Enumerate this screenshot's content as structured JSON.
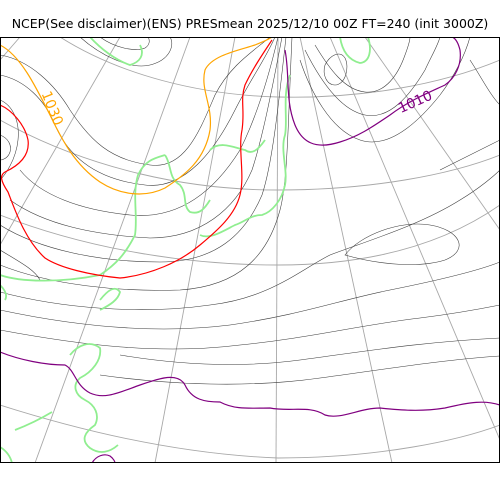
{
  "title": "NCEP(See disclaimer)(ENS) PRESmean 2025/12/10 00Z FT=240 (init 3000Z)",
  "contour_labels": {
    "high": "1030",
    "low": "1010"
  },
  "colors": {
    "frame": "#000000",
    "isobar": "#3a3a3a",
    "graticule": "#a8a8a8",
    "coastline": "#90ee90",
    "contour_1030": "#ffa500",
    "contour_1020": "#ff0000",
    "contour_1010": "#800080"
  }
}
